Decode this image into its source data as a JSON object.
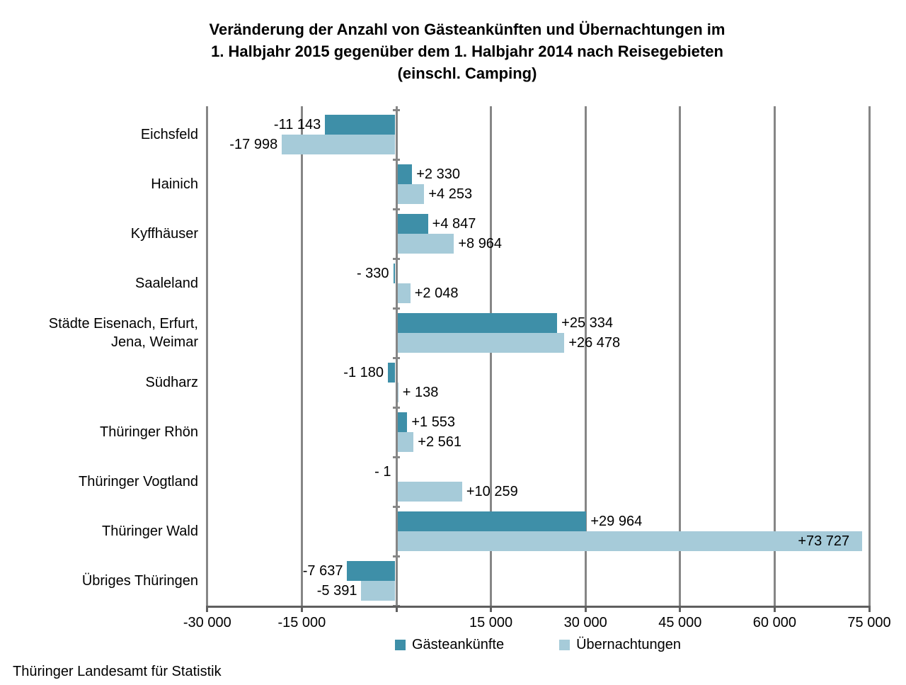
{
  "title": {
    "lines": [
      "Veränderung der Anzahl von Gästeankünften und Übernachtungen im",
      "1. Halbjahr 2015 gegenüber dem 1. Halbjahr 2014 nach Reisegebieten",
      "(einschl. Camping)"
    ]
  },
  "source": "Thüringer Landesamt für Statistik",
  "chart_data": {
    "type": "bar",
    "orientation": "horizontal",
    "title": "Veränderung der Anzahl von Gästeankünften und Übernachtungen im 1. Halbjahr 2015 gegenüber dem 1. Halbjahr 2014 nach Reisegebieten (einschl. Camping)",
    "categories": [
      "Eichsfeld",
      "Hainich",
      "Kyffhäuser",
      "Saaleland",
      "Städte Eisenach, Erfurt, Jena, Weimar",
      "Südharz",
      "Thüringer Rhön",
      "Thüringer Vogtland",
      "Thüringer Wald",
      "Übriges Thüringen"
    ],
    "category_label_lines": [
      [
        "Eichsfeld"
      ],
      [
        "Hainich"
      ],
      [
        "Kyffhäuser"
      ],
      [
        "Saaleland"
      ],
      [
        "Städte Eisenach, Erfurt,",
        "Jena, Weimar"
      ],
      [
        "Südharz"
      ],
      [
        "Thüringer Rhön"
      ],
      [
        "Thüringer Vogtland"
      ],
      [
        "Thüringer Wald"
      ],
      [
        "Übriges Thüringen"
      ]
    ],
    "series": [
      {
        "name": "Gästeankünfte",
        "color": "#3e8fa8",
        "values": [
          -11143,
          2330,
          4847,
          -330,
          25334,
          -1180,
          1553,
          -1,
          29964,
          -7637
        ],
        "value_labels": [
          "-11 143",
          "+2 330",
          "+4 847",
          "- 330",
          "+25 334",
          "-1 180",
          "+1 553",
          "- 1",
          "+29 964",
          "-7 637"
        ]
      },
      {
        "name": "Übernachtungen",
        "color": "#a6cbd9",
        "values": [
          -17998,
          4253,
          8964,
          2048,
          26478,
          138,
          2561,
          10259,
          73727,
          -5391
        ],
        "value_labels": [
          "-17 998",
          "+4 253",
          "+8 964",
          "+2 048",
          "+26 478",
          "+ 138",
          "+2 561",
          "+10 259",
          "+73 727",
          "-5 391"
        ]
      }
    ],
    "x_axis": {
      "min": -30000,
      "max": 75000,
      "tick_interval": 15000,
      "ticks": [
        -30000,
        -15000,
        15000,
        30000,
        45000,
        60000,
        75000
      ],
      "tick_labels": [
        "-30 000",
        "-15 000",
        "15 000",
        "30 000",
        "45 000",
        "60 000",
        "75 000"
      ],
      "zero_line": true,
      "gridlines": true
    },
    "legend": {
      "position": "bottom",
      "entries": [
        "Gästeankünfte",
        "Übernachtungen"
      ]
    },
    "inside_value_labels": [
      {
        "series_index": 1,
        "category_index": 8
      }
    ],
    "colors": {
      "gridline": "#868686",
      "axis": "#5f5f5f",
      "label_text": "#000000",
      "background": "#ffffff"
    }
  }
}
